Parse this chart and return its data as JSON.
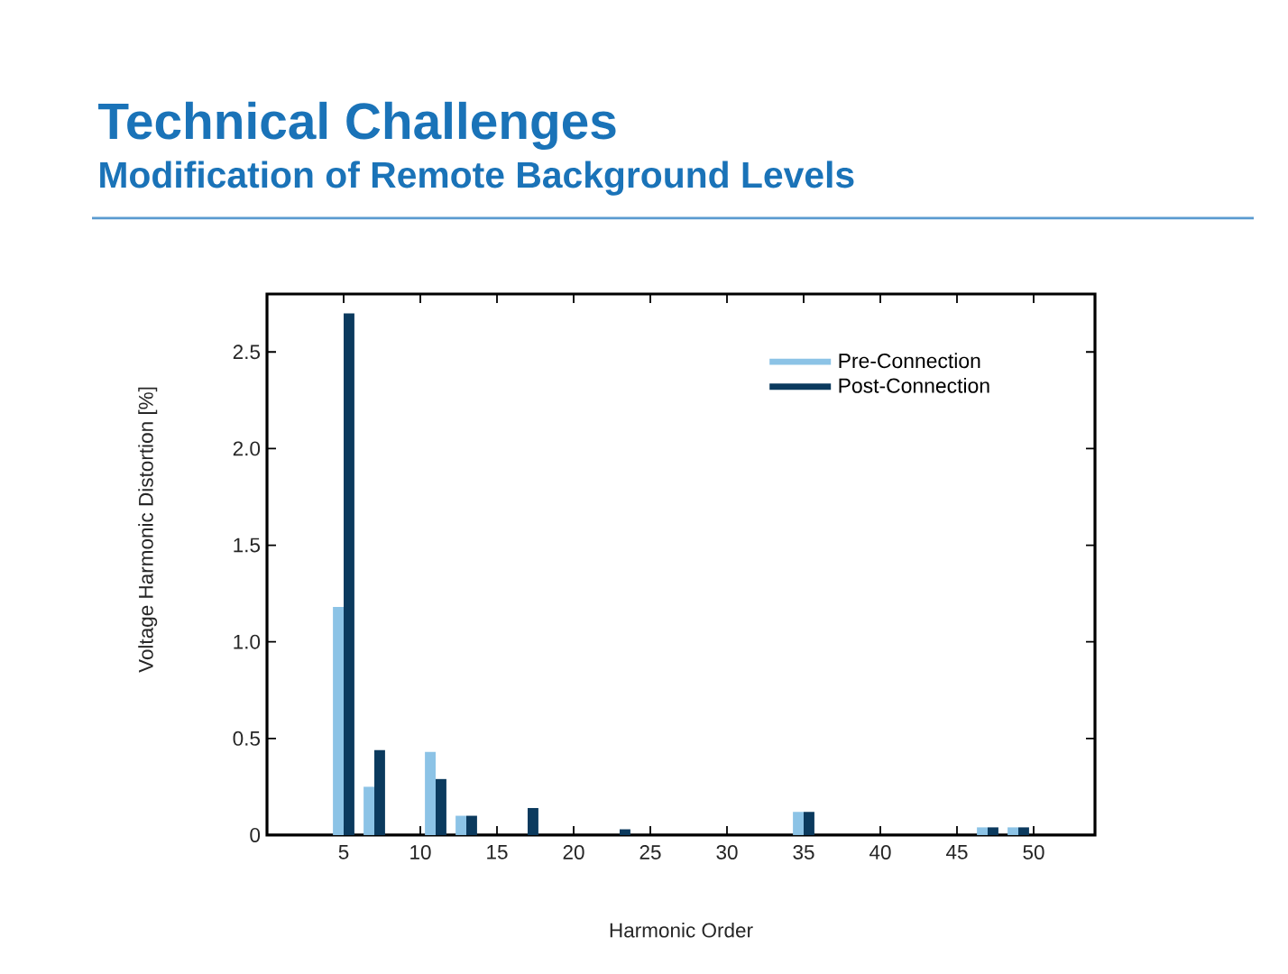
{
  "chart_data": {
    "type": "bar",
    "title": "Technical Challenges",
    "subtitle": "Modification of Remote Background Levels",
    "xlabel": "Harmonic Order",
    "ylabel": "Voltage Harmonic Distortion [%]",
    "x": [
      5,
      7,
      11,
      13,
      17,
      23,
      35,
      47,
      49
    ],
    "series": [
      {
        "name": "Pre-Connection",
        "color": "#8cc3e6",
        "values": [
          1.18,
          0.25,
          0.43,
          0.1,
          null,
          null,
          0.12,
          0.04,
          0.04
        ]
      },
      {
        "name": "Post-Connection",
        "color": "#0b3a5e",
        "values": [
          2.7,
          0.44,
          0.29,
          0.1,
          0.14,
          0.03,
          0.12,
          0.04,
          0.04
        ]
      }
    ],
    "xlim": [
      0,
      54
    ],
    "ylim": [
      0,
      2.8
    ],
    "xticks": [
      5,
      10,
      15,
      20,
      25,
      30,
      35,
      40,
      45,
      50
    ],
    "yticks": [
      0,
      0.5,
      {
        "value": 1,
        "label": "1.0"
      },
      1.5,
      {
        "value": 2,
        "label": "2.0"
      },
      2.5
    ],
    "legend": "top right"
  }
}
